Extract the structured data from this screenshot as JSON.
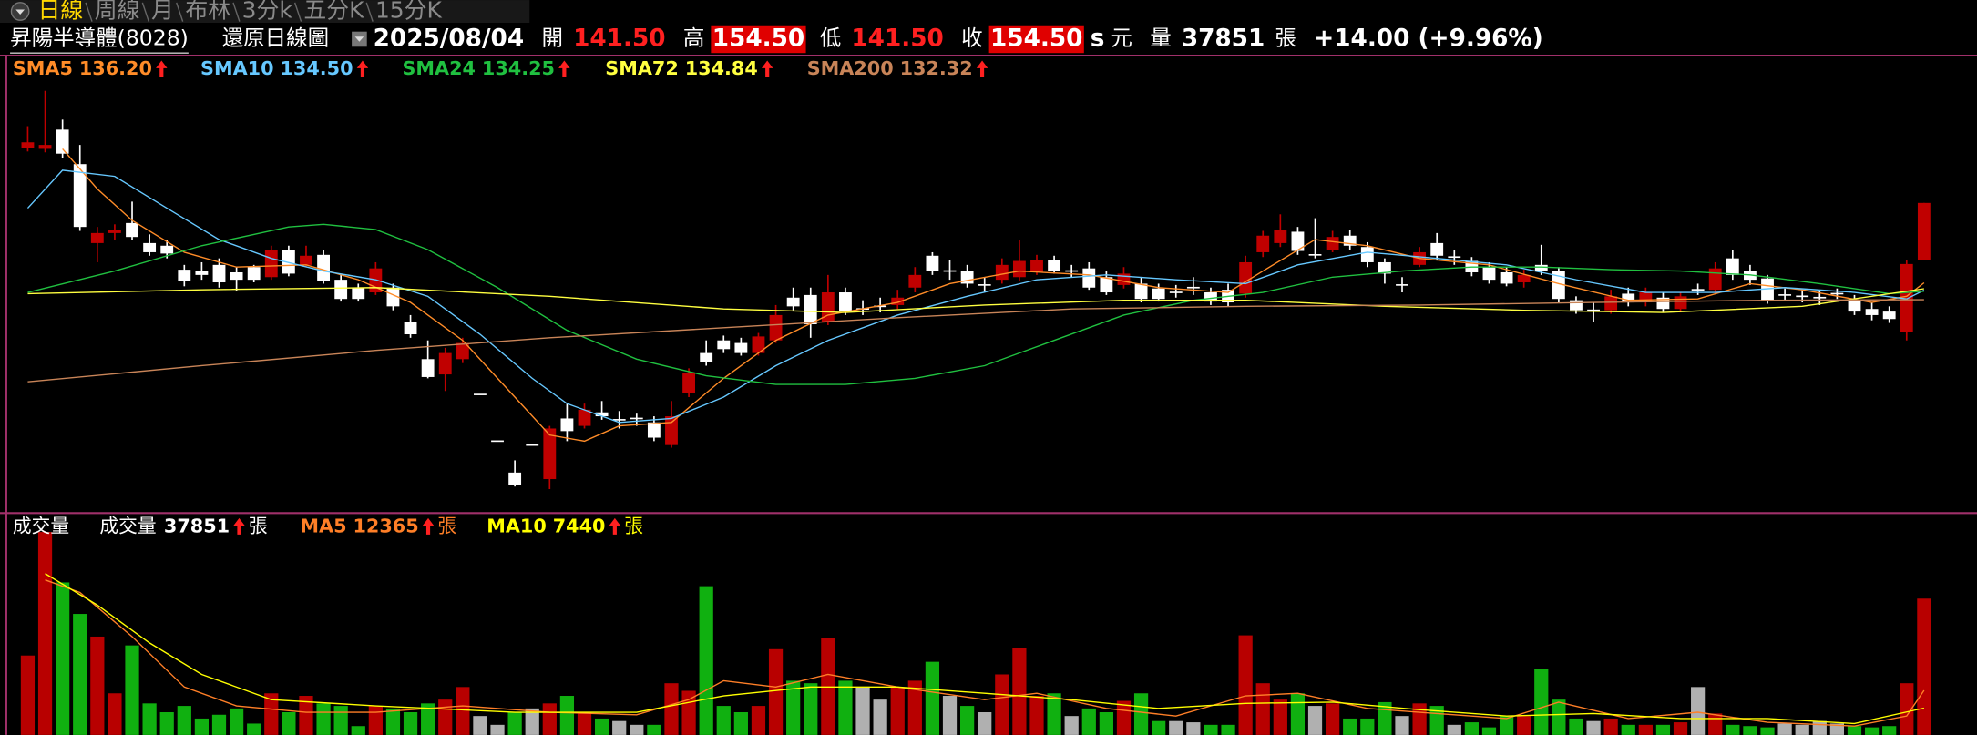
{
  "tabs": [
    "日線",
    "周線",
    "月",
    "布林",
    "3分k",
    "五分K",
    "15分K"
  ],
  "header": {
    "name": "昇陽半導體(8028)",
    "mode": "還原日線圖",
    "date": "2025/08/04",
    "open_label": "開",
    "open": "141.50",
    "high_label": "高",
    "high": "154.50",
    "low_label": "低",
    "low": "141.50",
    "close_label": "收",
    "close": "154.50",
    "s": "s",
    "unit": "元",
    "volume_label": "量",
    "volume": "37851",
    "volume_unit": "張",
    "change": "+14.00 (+9.96%)"
  },
  "chart_data": [
    {
      "type": "candlestick",
      "up_color": "#c00000",
      "down_color": "#ffffff",
      "open": [
        167.2,
        166.9,
        171.3,
        163.4,
        145.3,
        147.6,
        149.9,
        145.3,
        144.7,
        139.2,
        138.9,
        140.3,
        138.6,
        139.8,
        137.5,
        143.8,
        140.3,
        142.6,
        136.9,
        135.1,
        134.0,
        135.1,
        127.3,
        118.7,
        115.2,
        118.7,
        110.6,
        99.9,
        92.7,
        99.0,
        91.2,
        105.1,
        103.4,
        106.5,
        104.8,
        105.1,
        104.2,
        99.0,
        110.9,
        120.1,
        123.0,
        122.4,
        120.1,
        123.0,
        132.8,
        133.4,
        127.3,
        134.0,
        130.2,
        130.8,
        131.1,
        135.1,
        142.4,
        138.9,
        138.9,
        135.7,
        136.9,
        137.5,
        138.6,
        141.5,
        138.9,
        139.5,
        137.5,
        135.7,
        136.0,
        134.9,
        134.0,
        135.1,
        134.0,
        134.6,
        133.7,
        143.2,
        145.3,
        147.9,
        142.6,
        143.8,
        147.0,
        144.4,
        140.9,
        135.7,
        140.3,
        145.3,
        142.1,
        141.2,
        139.8,
        138.6,
        136.3,
        140.3,
        138.9,
        132.2,
        129.9,
        129.9,
        133.7,
        131.7,
        132.8,
        130.2,
        134.6,
        134.6,
        141.8,
        138.9,
        137.2,
        133.4,
        133.1,
        132.8,
        133.7,
        132.2,
        130.2,
        129.6,
        125.0,
        141.5
      ],
      "high": [
        172.1,
        180.2,
        173.6,
        167.8,
        149.0,
        149.6,
        154.8,
        147.3,
        146.1,
        140.3,
        140.9,
        141.8,
        139.8,
        140.3,
        144.7,
        144.7,
        144.7,
        143.8,
        138.0,
        136.0,
        140.9,
        136.0,
        128.8,
        123.0,
        121.3,
        123.6,
        110.6,
        99.9,
        95.5,
        99.0,
        103.4,
        108.5,
        108.5,
        109.1,
        106.8,
        106.2,
        105.6,
        109.1,
        116.6,
        123.0,
        124.1,
        123.6,
        124.7,
        131.1,
        135.1,
        135.1,
        138.0,
        135.1,
        132.2,
        132.8,
        134.6,
        139.8,
        143.2,
        141.5,
        140.3,
        137.5,
        141.8,
        146.1,
        142.6,
        142.4,
        140.3,
        140.9,
        138.9,
        139.8,
        137.5,
        136.0,
        135.7,
        137.5,
        135.1,
        136.0,
        142.4,
        148.1,
        151.9,
        149.0,
        151.0,
        148.1,
        148.4,
        145.5,
        141.8,
        137.5,
        144.4,
        147.6,
        143.8,
        142.1,
        140.9,
        139.8,
        139.2,
        144.9,
        139.8,
        133.1,
        131.7,
        134.6,
        135.1,
        135.1,
        134.0,
        134.0,
        136.0,
        140.9,
        143.8,
        140.3,
        138.0,
        134.9,
        134.6,
        134.3,
        134.9,
        133.4,
        131.7,
        130.8,
        141.5,
        154.5
      ],
      "low": [
        166.3,
        166.1,
        164.9,
        148.1,
        140.9,
        146.1,
        146.1,
        142.4,
        141.8,
        135.4,
        136.9,
        135.1,
        134.3,
        136.3,
        136.9,
        137.7,
        139.8,
        136.0,
        131.9,
        131.9,
        133.4,
        129.9,
        123.6,
        114.3,
        111.4,
        117.8,
        110.6,
        99.9,
        89.5,
        99.0,
        88.9,
        99.9,
        102.8,
        104.8,
        102.8,
        103.4,
        99.9,
        98.4,
        110.0,
        117.2,
        120.1,
        119.5,
        119.5,
        122.4,
        129.9,
        123.6,
        126.5,
        128.8,
        128.8,
        129.4,
        130.2,
        134.0,
        138.0,
        136.9,
        135.1,
        134.0,
        136.0,
        136.6,
        138.0,
        138.3,
        137.5,
        134.6,
        133.4,
        134.9,
        131.7,
        131.9,
        132.8,
        133.4,
        131.1,
        130.8,
        132.8,
        142.1,
        144.4,
        142.6,
        141.8,
        143.2,
        143.8,
        139.8,
        136.0,
        134.0,
        139.8,
        141.5,
        140.3,
        137.7,
        136.0,
        135.4,
        135.1,
        138.0,
        131.7,
        129.1,
        127.3,
        129.1,
        130.8,
        130.8,
        129.4,
        129.4,
        133.4,
        133.7,
        136.9,
        135.7,
        131.4,
        132.2,
        131.7,
        131.1,
        132.5,
        128.8,
        127.6,
        127.0,
        123.0,
        141.5
      ],
      "close": [
        168.4,
        167.8,
        165.8,
        149.0,
        147.6,
        148.4,
        146.7,
        143.2,
        142.9,
        136.6,
        138.0,
        136.3,
        136.9,
        136.9,
        143.8,
        138.3,
        142.4,
        136.6,
        132.5,
        132.5,
        139.5,
        130.8,
        124.4,
        114.6,
        120.1,
        122.4,
        110.6,
        99.9,
        89.8,
        99.0,
        102.8,
        102.2,
        107.1,
        105.6,
        104.8,
        105.1,
        100.7,
        105.6,
        115.5,
        118.1,
        121.0,
        120.1,
        123.9,
        128.8,
        130.8,
        126.7,
        134.0,
        129.6,
        130.2,
        130.8,
        132.8,
        138.0,
        138.9,
        138.9,
        136.0,
        135.7,
        140.3,
        141.2,
        141.5,
        138.9,
        138.9,
        135.1,
        134.0,
        138.3,
        132.5,
        132.5,
        134.0,
        135.1,
        131.9,
        131.7,
        140.9,
        147.0,
        148.4,
        143.5,
        142.6,
        146.7,
        144.7,
        140.9,
        138.3,
        135.7,
        143.2,
        142.4,
        142.1,
        138.6,
        136.9,
        136.0,
        138.0,
        138.9,
        132.5,
        129.9,
        129.9,
        133.1,
        131.7,
        134.0,
        130.2,
        133.1,
        134.6,
        139.5,
        138.0,
        136.9,
        132.2,
        133.4,
        133.1,
        132.8,
        133.7,
        129.6,
        128.8,
        127.9,
        140.5,
        154.5
      ],
      "moving_averages": [
        {
          "name": "SMA5",
          "value_label": "136.20",
          "color": "#ff8c28",
          "x": [
            2,
            4,
            6,
            9,
            12,
            16,
            19,
            22,
            25,
            28,
            30,
            32,
            34,
            37,
            40,
            43,
            46,
            50,
            53,
            57,
            61,
            65,
            69,
            71,
            74,
            77,
            80,
            84,
            88,
            92,
            96,
            99,
            102,
            106,
            108,
            109
          ],
          "values": [
            166.9,
            157.7,
            150.5,
            143.2,
            139.8,
            140.3,
            136.9,
            131.7,
            123.0,
            110.0,
            101.3,
            99.9,
            103.4,
            104.2,
            114.3,
            123.0,
            128.8,
            131.7,
            136.0,
            138.9,
            138.0,
            135.1,
            134.0,
            138.9,
            146.1,
            144.7,
            141.8,
            140.3,
            136.0,
            132.2,
            132.5,
            136.0,
            134.6,
            131.7,
            133.1,
            136.2
          ]
        },
        {
          "name": "SMA10",
          "value_label": "134.50",
          "color": "#66c8ff",
          "x": [
            0,
            2,
            5,
            8,
            11,
            14,
            17,
            20,
            23,
            26,
            29,
            31,
            34,
            37,
            40,
            43,
            46,
            50,
            54,
            58,
            62,
            66,
            70,
            73,
            77,
            81,
            85,
            89,
            93,
            97,
            101,
            105,
            108,
            109
          ],
          "values": [
            153.3,
            162.0,
            160.6,
            153.3,
            146.1,
            141.8,
            138.9,
            136.9,
            133.1,
            124.4,
            114.3,
            108.5,
            104.2,
            105.1,
            110.0,
            117.2,
            123.0,
            128.8,
            133.1,
            136.9,
            138.0,
            136.9,
            136.0,
            140.3,
            143.2,
            141.8,
            140.3,
            136.9,
            134.0,
            134.0,
            135.1,
            134.0,
            132.5,
            134.5
          ]
        },
        {
          "name": "SMA24",
          "value_label": "134.25",
          "color": "#20c040",
          "x": [
            0,
            5,
            10,
            15,
            17,
            20,
            23,
            27,
            31,
            35,
            39,
            43,
            47,
            51,
            55,
            59,
            63,
            67,
            71,
            75,
            79,
            83,
            87,
            91,
            95,
            99,
            103,
            107,
            109
          ],
          "values": [
            134.0,
            138.9,
            144.7,
            149.0,
            149.6,
            148.4,
            143.8,
            135.1,
            125.3,
            118.7,
            114.9,
            112.9,
            112.9,
            114.3,
            117.2,
            123.0,
            128.8,
            132.2,
            134.0,
            137.5,
            138.9,
            139.8,
            139.8,
            139.2,
            138.9,
            138.0,
            136.0,
            133.7,
            134.25
          ]
        },
        {
          "name": "SMA72",
          "value_label": "134.84",
          "color": "#ffff40",
          "x": [
            0,
            10,
            20,
            30,
            40,
            47,
            55,
            63,
            70,
            78,
            86,
            94,
            102,
            109
          ],
          "values": [
            133.7,
            134.6,
            135.1,
            133.1,
            130.2,
            129.4,
            131.1,
            132.2,
            132.2,
            130.8,
            129.9,
            129.4,
            130.8,
            134.84
          ]
        },
        {
          "name": "SMA200",
          "value_label": "132.32",
          "color": "#c88458",
          "x": [
            0,
            10,
            20,
            30,
            40,
            50,
            60,
            70,
            80,
            90,
            100,
            109
          ],
          "values": [
            113.5,
            117.2,
            120.7,
            123.6,
            125.9,
            128.2,
            130.2,
            130.8,
            131.1,
            131.7,
            132.2,
            132.32
          ]
        }
      ]
    },
    {
      "type": "bar",
      "title": "成交量",
      "series_label": "成交量",
      "unit": "張",
      "up_color": "#b80000",
      "down_color": "#10b010",
      "flat_color": "#b0b0b0",
      "values": [
        22050,
        56350,
        42350,
        33600,
        27300,
        11550,
        24850,
        8750,
        6300,
        8050,
        4550,
        5600,
        7350,
        3150,
        11550,
        6300,
        10850,
        8750,
        8050,
        2450,
        8050,
        7350,
        6300,
        8750,
        9800,
        13300,
        5250,
        2800,
        6300,
        7350,
        8750,
        10850,
        6300,
        4550,
        3850,
        2800,
        2800,
        14350,
        12250,
        41300,
        8050,
        6300,
        8050,
        23800,
        15050,
        14350,
        26950,
        15050,
        13300,
        9800,
        13300,
        15050,
        20300,
        10850,
        8050,
        6300,
        16800,
        24150,
        10850,
        11550,
        5250,
        7350,
        6300,
        9450,
        11550,
        3850,
        3850,
        3500,
        2800,
        2800,
        27650,
        14350,
        9800,
        11550,
        8050,
        8750,
        4550,
        4550,
        9100,
        5250,
        8750,
        8050,
        2800,
        3500,
        2100,
        5250,
        5250,
        18200,
        9800,
        4550,
        3850,
        4550,
        2800,
        2800,
        2800,
        3500,
        13300,
        5950,
        2800,
        2450,
        2100,
        3150,
        2800,
        3850,
        3150,
        2450,
        2100,
        2450,
        14350,
        37851
      ],
      "moving_averages": [
        {
          "name": "MA5",
          "color": "#ff7f27",
          "x": [
            1,
            3,
            6,
            9,
            12,
            16,
            20,
            25,
            30,
            35,
            38,
            40,
            43,
            46,
            50,
            55,
            58,
            62,
            66,
            70,
            73,
            77,
            80,
            85,
            88,
            92,
            96,
            100,
            105,
            108,
            109
          ],
          "values": [
            43050,
            39550,
            27300,
            13300,
            8050,
            6300,
            6300,
            8050,
            6300,
            5600,
            9800,
            15050,
            13300,
            16800,
            13300,
            9800,
            11550,
            7350,
            5250,
            10850,
            11550,
            7350,
            6300,
            4550,
            9100,
            4550,
            6300,
            3500,
            2450,
            5250,
            12365
          ]
        },
        {
          "name": "MA10",
          "color": "#ffff00",
          "x": [
            1,
            4,
            7,
            10,
            14,
            20,
            28,
            35,
            40,
            45,
            50,
            55,
            60,
            65,
            70,
            75,
            80,
            85,
            90,
            95,
            100,
            105,
            109
          ],
          "values": [
            44800,
            36050,
            25550,
            16800,
            9800,
            8050,
            6300,
            6300,
            10850,
            13300,
            13300,
            11550,
            9800,
            7350,
            8750,
            9100,
            7000,
            5250,
            5950,
            4550,
            4550,
            3150,
            7440
          ]
        }
      ]
    }
  ]
}
